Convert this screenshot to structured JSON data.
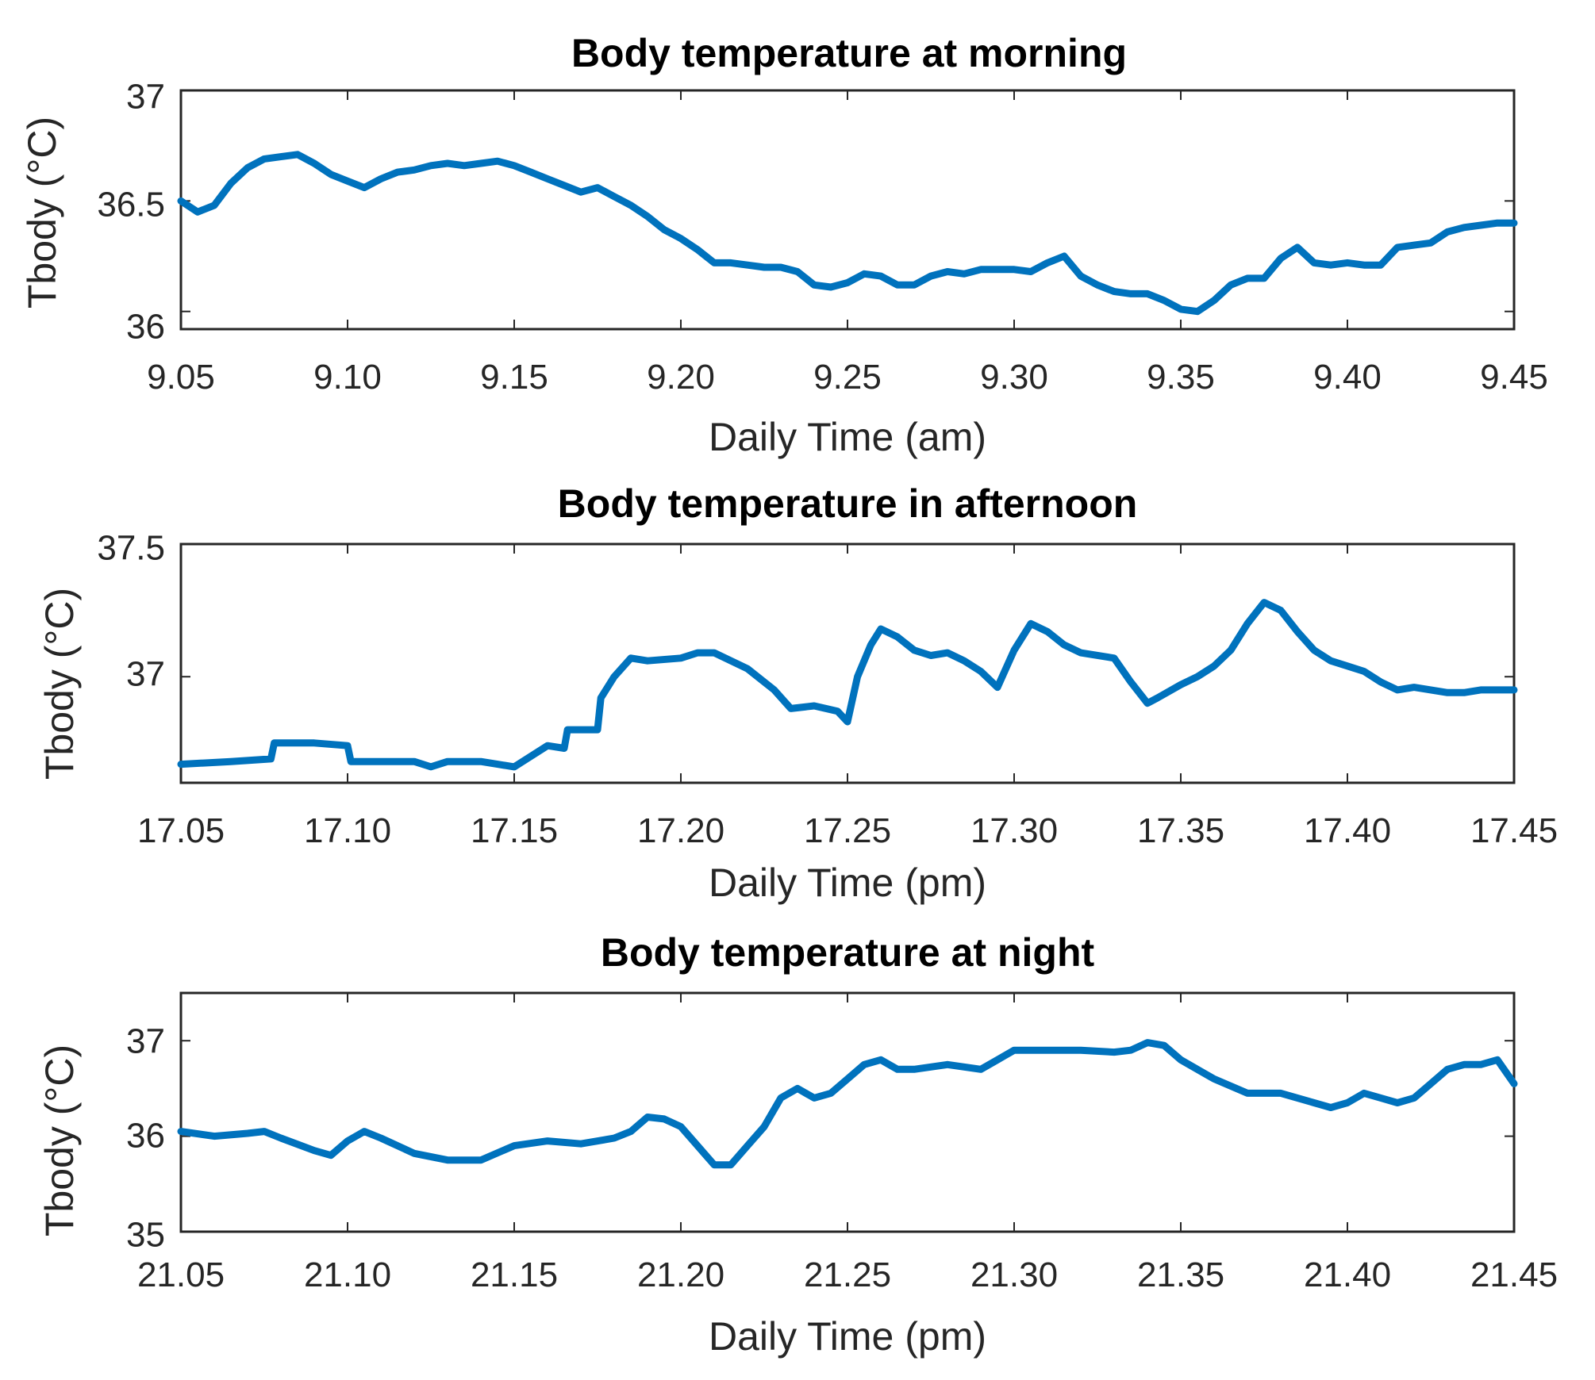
{
  "colors": {
    "series": "#0072BD",
    "axis": "#262626"
  },
  "chart_data": [
    {
      "type": "line",
      "title": "Body temperature at morning",
      "xlabel": "Daily Time (am)",
      "ylabel": "Tbody (°C)",
      "xlim": [
        9.05,
        9.45
      ],
      "ylim": [
        35.92,
        37.0
      ],
      "xticks": [
        "9.05",
        "9.10",
        "9.15",
        "9.20",
        "9.25",
        "9.30",
        "9.35",
        "9.40",
        "9.45"
      ],
      "yticks": [
        "36",
        "36.5",
        "37"
      ],
      "xtick_values": [
        9.05,
        9.1,
        9.15,
        9.2,
        9.25,
        9.3,
        9.35,
        9.4,
        9.45
      ],
      "ytick_values": [
        36,
        36.5,
        37
      ],
      "grid": false,
      "series": [
        {
          "x": [
            9.05,
            9.055,
            9.06,
            9.065,
            9.07,
            9.075,
            9.08,
            9.085,
            9.09,
            9.095,
            9.1,
            9.105,
            9.11,
            9.115,
            9.12,
            9.125,
            9.13,
            9.135,
            9.14,
            9.145,
            9.15,
            9.155,
            9.16,
            9.165,
            9.17,
            9.175,
            9.18,
            9.185,
            9.19,
            9.195,
            9.2,
            9.205,
            9.21,
            9.215,
            9.22,
            9.225,
            9.23,
            9.235,
            9.24,
            9.245,
            9.25,
            9.255,
            9.26,
            9.265,
            9.27,
            9.275,
            9.28,
            9.285,
            9.29,
            9.295,
            9.3,
            9.305,
            9.31,
            9.315,
            9.32,
            9.325,
            9.33,
            9.335,
            9.34,
            9.345,
            9.35,
            9.355,
            9.36,
            9.365,
            9.37,
            9.375,
            9.38,
            9.385,
            9.39,
            9.395,
            9.4,
            9.405,
            9.41,
            9.415,
            9.42,
            9.425,
            9.43,
            9.435,
            9.44,
            9.445,
            9.45
          ],
          "y": [
            36.5,
            36.45,
            36.48,
            36.58,
            36.65,
            36.69,
            36.7,
            36.71,
            36.67,
            36.62,
            36.59,
            36.56,
            36.6,
            36.63,
            36.64,
            36.66,
            36.67,
            36.66,
            36.67,
            36.68,
            36.66,
            36.63,
            36.6,
            36.57,
            36.54,
            36.56,
            36.52,
            36.48,
            36.43,
            36.37,
            36.33,
            36.28,
            36.22,
            36.22,
            36.21,
            36.2,
            36.2,
            36.18,
            36.12,
            36.11,
            36.13,
            36.17,
            36.16,
            36.12,
            36.12,
            36.16,
            36.18,
            36.17,
            36.19,
            36.19,
            36.19,
            36.18,
            36.22,
            36.25,
            36.16,
            36.12,
            36.09,
            36.08,
            36.08,
            36.05,
            36.01,
            36.0,
            36.05,
            36.12,
            36.15,
            36.15,
            36.24,
            36.29,
            36.22,
            36.21,
            36.22,
            36.21,
            36.21,
            36.29,
            36.3,
            36.31,
            36.36,
            36.38,
            36.39,
            36.4,
            36.4
          ]
        }
      ]
    },
    {
      "type": "line",
      "title": "Body temperature in afternoon",
      "xlabel": "Daily Time (pm)",
      "ylabel": "Tbody (°C)",
      "xlim": [
        17.05,
        17.45
      ],
      "ylim": [
        36.6,
        37.5
      ],
      "xticks": [
        "17.05",
        "17.10",
        "17.15",
        "17.20",
        "17.25",
        "17.30",
        "17.35",
        "17.40",
        "17.45"
      ],
      "yticks": [
        "37",
        "37.5"
      ],
      "xtick_values": [
        17.05,
        17.1,
        17.15,
        17.2,
        17.25,
        17.3,
        17.35,
        17.4,
        17.45
      ],
      "ytick_values": [
        37,
        37.5
      ],
      "grid": false,
      "series": [
        {
          "x": [
            17.05,
            17.065,
            17.077,
            17.078,
            17.09,
            17.1,
            17.101,
            17.12,
            17.125,
            17.13,
            17.14,
            17.145,
            17.15,
            17.155,
            17.16,
            17.165,
            17.166,
            17.175,
            17.176,
            17.18,
            17.185,
            17.19,
            17.2,
            17.205,
            17.21,
            17.22,
            17.228,
            17.233,
            17.24,
            17.247,
            17.25,
            17.253,
            17.257,
            17.26,
            17.265,
            17.27,
            17.275,
            17.28,
            17.285,
            17.29,
            17.295,
            17.3,
            17.305,
            17.31,
            17.315,
            17.32,
            17.33,
            17.335,
            17.34,
            17.343,
            17.35,
            17.355,
            17.36,
            17.365,
            17.37,
            17.375,
            17.38,
            17.385,
            17.39,
            17.395,
            17.4,
            17.405,
            17.41,
            17.415,
            17.42,
            17.425,
            17.43,
            17.435,
            17.44,
            17.445,
            17.45
          ],
          "y": [
            36.67,
            36.68,
            36.69,
            36.75,
            36.75,
            36.74,
            36.68,
            36.68,
            36.66,
            36.68,
            36.68,
            36.67,
            36.66,
            36.7,
            36.74,
            36.73,
            36.8,
            36.8,
            36.92,
            37.0,
            37.07,
            37.06,
            37.07,
            37.09,
            37.09,
            37.03,
            36.95,
            36.88,
            36.89,
            36.87,
            36.83,
            37.0,
            37.12,
            37.18,
            37.15,
            37.1,
            37.08,
            37.09,
            37.06,
            37.02,
            36.96,
            37.1,
            37.2,
            37.17,
            37.12,
            37.09,
            37.07,
            36.98,
            36.9,
            36.92,
            36.97,
            37.0,
            37.04,
            37.1,
            37.2,
            37.28,
            37.25,
            37.17,
            37.1,
            37.06,
            37.04,
            37.02,
            36.98,
            36.95,
            36.96,
            36.95,
            36.94,
            36.94,
            36.95,
            36.95,
            36.95
          ]
        }
      ]
    },
    {
      "type": "line",
      "title": "Body temperature at night",
      "xlabel": "Daily Time (pm)",
      "ylabel": "Tbody (°C)",
      "xlim": [
        21.05,
        21.45
      ],
      "ylim": [
        35.0,
        37.5
      ],
      "xticks": [
        "21.05",
        "21.10",
        "21.15",
        "21.20",
        "21.25",
        "21.30",
        "21.35",
        "21.40",
        "21.45"
      ],
      "yticks": [
        "35",
        "36",
        "37"
      ],
      "xtick_values": [
        21.05,
        21.1,
        21.15,
        21.2,
        21.25,
        21.3,
        21.35,
        21.4,
        21.45
      ],
      "ytick_values": [
        35,
        36,
        37
      ],
      "grid": false,
      "series": [
        {
          "x": [
            21.05,
            21.06,
            21.07,
            21.075,
            21.08,
            21.09,
            21.095,
            21.1,
            21.105,
            21.11,
            21.12,
            21.13,
            21.14,
            21.15,
            21.16,
            21.17,
            21.18,
            21.185,
            21.19,
            21.195,
            21.2,
            21.205,
            21.21,
            21.215,
            21.22,
            21.225,
            21.23,
            21.235,
            21.24,
            21.245,
            21.25,
            21.255,
            21.26,
            21.265,
            21.27,
            21.28,
            21.29,
            21.295,
            21.3,
            21.31,
            21.32,
            21.33,
            21.335,
            21.34,
            21.345,
            21.35,
            21.36,
            21.37,
            21.38,
            21.39,
            21.395,
            21.4,
            21.405,
            21.41,
            21.415,
            21.42,
            21.425,
            21.43,
            21.435,
            21.44,
            21.445,
            21.45
          ],
          "y": [
            36.05,
            36.0,
            36.03,
            36.05,
            35.98,
            35.85,
            35.8,
            35.95,
            36.05,
            35.98,
            35.82,
            35.75,
            35.75,
            35.9,
            35.95,
            35.92,
            35.98,
            36.05,
            36.2,
            36.18,
            36.1,
            35.9,
            35.7,
            35.7,
            35.9,
            36.1,
            36.4,
            36.5,
            36.4,
            36.45,
            36.6,
            36.75,
            36.8,
            36.7,
            36.7,
            36.75,
            36.7,
            36.8,
            36.9,
            36.9,
            36.9,
            36.88,
            36.9,
            36.98,
            36.95,
            36.8,
            36.6,
            36.45,
            36.45,
            36.35,
            36.3,
            36.35,
            36.45,
            36.4,
            36.35,
            36.4,
            36.55,
            36.7,
            36.75,
            36.75,
            36.8,
            36.55
          ]
        }
      ]
    }
  ]
}
